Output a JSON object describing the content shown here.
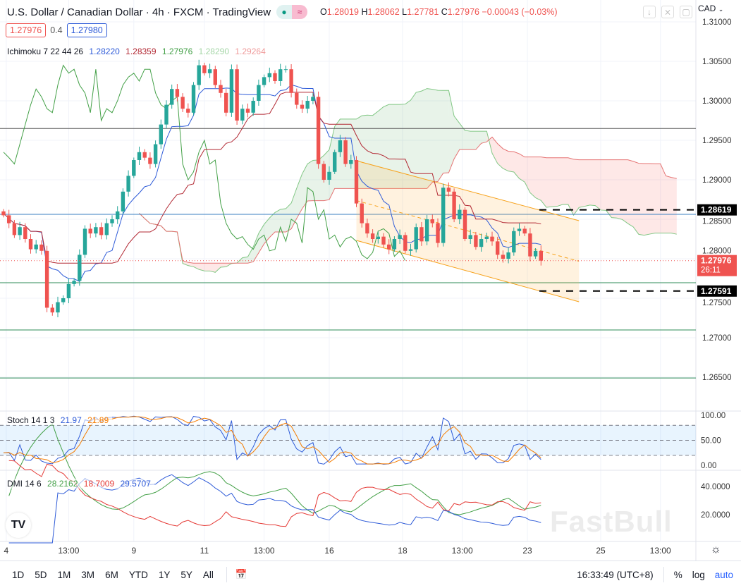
{
  "header": {
    "title": "U.S. Dollar / Canadian Dollar · 4h · FXCM · TradingView",
    "status_icons": [
      "market-open-dot-icon",
      "approx-icon"
    ],
    "ohlc": {
      "o_label": "O",
      "o": "1.28019",
      "h_label": "H",
      "h": "1.28062",
      "l_label": "L",
      "l": "1.27781",
      "c_label": "C",
      "c": "1.27976",
      "change": "−0.00043 (−0.03%)"
    },
    "bid": "1.27976",
    "spread": "0.4",
    "ask": "1.27980",
    "currency": "CAD",
    "tools": [
      "arrow-down-icon",
      "collapse-icon",
      "maximize-icon"
    ]
  },
  "ichimoku": {
    "label": "Ichimoku 7 22 44 26",
    "v1": "1.28220",
    "v2": "1.28359",
    "v3": "1.27976",
    "v4": "1.28290",
    "v5": "1.29264"
  },
  "stoch": {
    "label": "Stoch 14 1 3",
    "k": "21.97",
    "d": "21.89",
    "axis": [
      "100.00",
      "50.00",
      "0.00"
    ]
  },
  "dmi": {
    "label": "DMI 14 6",
    "adx": "28.2162",
    "minus": "18.7009",
    "plus": "29.5707",
    "axis": [
      "40.0000",
      "20.0000"
    ]
  },
  "price_labels": {
    "line_high": "1.28619",
    "line_low": "1.27591",
    "last": "1.27976",
    "countdown": "26:11"
  },
  "bottom": {
    "ranges": [
      "1D",
      "5D",
      "1M",
      "3M",
      "6M",
      "YTD",
      "1Y",
      "5Y",
      "All"
    ],
    "time": "16:33:49 (UTC+8)",
    "pct": "%",
    "log": "log",
    "auto": "auto"
  },
  "watermark": "FastBull",
  "colors": {
    "up": "#26a69a",
    "down": "#ef5350",
    "conversion": "#2e5bd8",
    "base": "#b22833",
    "lagging": "#43a047",
    "spanA": "#81c784",
    "spanB": "#e57373",
    "stoch_k": "#2e5bd8",
    "stoch_d": "#f57c00",
    "adx": "#43a047",
    "di_plus": "#2e5bd8",
    "di_minus": "#e53935",
    "channel": "#f7a21b"
  },
  "chart_data": {
    "type": "candlestick",
    "symbol": "USDCAD",
    "interval": "4h",
    "y_axis_ticks": [
      "1.31000",
      "1.30500",
      "1.30000",
      "1.29500",
      "1.29000",
      "1.28500",
      "1.28000",
      "1.27500",
      "1.27000",
      "1.26500"
    ],
    "ylim": [
      1.2625,
      1.3115
    ],
    "x_ticks": [
      {
        "label": "4",
        "index": 0.5
      },
      {
        "label": "13:00",
        "index": 12
      },
      {
        "label": "9",
        "index": 24
      },
      {
        "label": "11",
        "index": 37
      },
      {
        "label": "13:00",
        "index": 48
      },
      {
        "label": "16",
        "index": 60
      },
      {
        "label": "18",
        "index": 73.5
      },
      {
        "label": "13:00",
        "index": 84.5
      },
      {
        "label": "23",
        "index": 96.5
      },
      {
        "label": "25",
        "index": 110
      },
      {
        "label": "13:00",
        "index": 121
      }
    ],
    "closes": [
      1.2855,
      1.2845,
      1.283,
      1.284,
      1.2825,
      1.2812,
      1.2818,
      1.281,
      1.2738,
      1.2732,
      1.2745,
      1.275,
      1.2768,
      1.2772,
      1.2805,
      1.2838,
      1.2832,
      1.284,
      1.283,
      1.2845,
      1.285,
      1.286,
      1.2885,
      1.2905,
      1.2925,
      1.2935,
      1.2928,
      1.292,
      1.2945,
      1.297,
      1.2995,
      1.3015,
      1.3005,
      1.299,
      1.2985,
      1.302,
      1.3045,
      1.3035,
      1.304,
      1.302,
      1.301,
      1.2985,
      1.304,
      1.2975,
      1.299,
      1.2985,
      1.3,
      1.302,
      1.303,
      1.3035,
      1.3025,
      1.304,
      1.304,
      1.301,
      1.2995,
      1.299,
      1.3,
      1.3005,
      1.292,
      1.29,
      1.291,
      1.2935,
      1.295,
      1.292,
      1.2925,
      1.287,
      1.2845,
      1.2832,
      1.2825,
      1.2828,
      1.2818,
      1.2812,
      1.2825,
      1.283,
      1.281,
      1.2812,
      1.284,
      1.2822,
      1.285,
      1.2845,
      1.282,
      1.289,
      1.2885,
      1.285,
      1.2862,
      1.2825,
      1.283,
      1.2815,
      1.2825,
      1.2828,
      1.2822,
      1.2805,
      1.28,
      1.2808,
      1.2835,
      1.2838,
      1.2832,
      1.2803,
      1.281,
      1.27976
    ],
    "horizontal_lines": [
      1.2965,
      1.28563,
      1.27696,
      1.27098,
      1.2649
    ],
    "dashed_levels": [
      1.28619,
      1.27591
    ],
    "last_price": 1.27976,
    "channel": {
      "start_index": 65,
      "end_index": 106,
      "upper": [
        1.29241,
        1.28482
      ],
      "lower": [
        1.28232,
        1.27455
      ]
    },
    "stoch_bands": [
      80,
      50,
      20
    ],
    "stoch_ylim": [
      0,
      100
    ],
    "dmi_ylim": [
      0,
      50
    ]
  }
}
